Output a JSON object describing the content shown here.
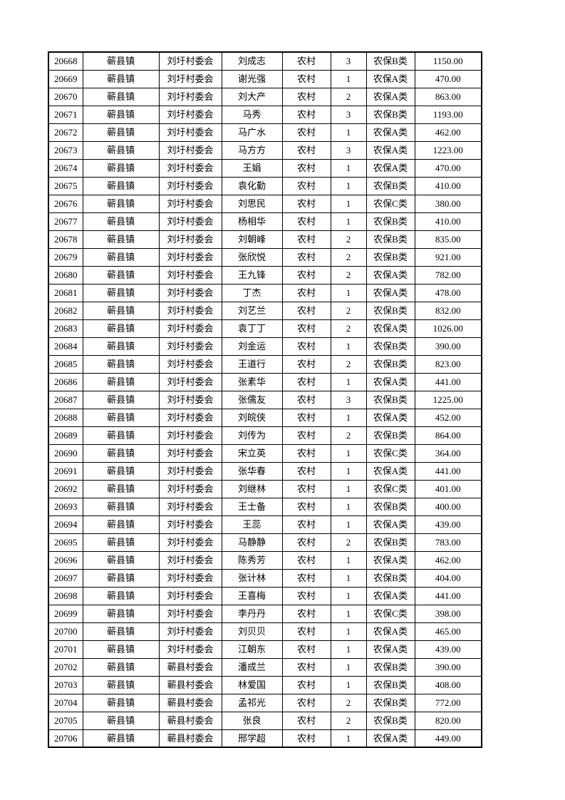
{
  "page": {
    "background_color": "#ffffff",
    "border_color": "#000000",
    "text_color": "#000000"
  },
  "table": {
    "rows": [
      [
        "20668",
        "蕲县镇",
        "刘圩村委会",
        "刘成志",
        "农村",
        "3",
        "农保B类",
        "1150.00"
      ],
      [
        "20669",
        "蕲县镇",
        "刘圩村委会",
        "谢光强",
        "农村",
        "1",
        "农保A类",
        "470.00"
      ],
      [
        "20670",
        "蕲县镇",
        "刘圩村委会",
        "刘大产",
        "农村",
        "2",
        "农保A类",
        "863.00"
      ],
      [
        "20671",
        "蕲县镇",
        "刘圩村委会",
        "马秀",
        "农村",
        "3",
        "农保B类",
        "1193.00"
      ],
      [
        "20672",
        "蕲县镇",
        "刘圩村委会",
        "马广水",
        "农村",
        "1",
        "农保A类",
        "462.00"
      ],
      [
        "20673",
        "蕲县镇",
        "刘圩村委会",
        "马方方",
        "农村",
        "3",
        "农保A类",
        "1223.00"
      ],
      [
        "20674",
        "蕲县镇",
        "刘圩村委会",
        "王娟",
        "农村",
        "1",
        "农保A类",
        "470.00"
      ],
      [
        "20675",
        "蕲县镇",
        "刘圩村委会",
        "袁化勤",
        "农村",
        "1",
        "农保B类",
        "410.00"
      ],
      [
        "20676",
        "蕲县镇",
        "刘圩村委会",
        "刘思民",
        "农村",
        "1",
        "农保C类",
        "380.00"
      ],
      [
        "20677",
        "蕲县镇",
        "刘圩村委会",
        "杨相华",
        "农村",
        "1",
        "农保B类",
        "410.00"
      ],
      [
        "20678",
        "蕲县镇",
        "刘圩村委会",
        "刘朝峰",
        "农村",
        "2",
        "农保B类",
        "835.00"
      ],
      [
        "20679",
        "蕲县镇",
        "刘圩村委会",
        "张欣悦",
        "农村",
        "2",
        "农保B类",
        "921.00"
      ],
      [
        "20680",
        "蕲县镇",
        "刘圩村委会",
        "王九锋",
        "农村",
        "2",
        "农保A类",
        "782.00"
      ],
      [
        "20681",
        "蕲县镇",
        "刘圩村委会",
        "丁杰",
        "农村",
        "1",
        "农保A类",
        "478.00"
      ],
      [
        "20682",
        "蕲县镇",
        "刘圩村委会",
        "刘艺兰",
        "农村",
        "2",
        "农保B类",
        "832.00"
      ],
      [
        "20683",
        "蕲县镇",
        "刘圩村委会",
        "袁丁丁",
        "农村",
        "2",
        "农保A类",
        "1026.00"
      ],
      [
        "20684",
        "蕲县镇",
        "刘圩村委会",
        "刘金运",
        "农村",
        "1",
        "农保B类",
        "390.00"
      ],
      [
        "20685",
        "蕲县镇",
        "刘圩村委会",
        "王道行",
        "农村",
        "2",
        "农保B类",
        "823.00"
      ],
      [
        "20686",
        "蕲县镇",
        "刘圩村委会",
        "张素华",
        "农村",
        "1",
        "农保A类",
        "441.00"
      ],
      [
        "20687",
        "蕲县镇",
        "刘圩村委会",
        "张儒友",
        "农村",
        "3",
        "农保B类",
        "1225.00"
      ],
      [
        "20688",
        "蕲县镇",
        "刘圩村委会",
        "刘皖侠",
        "农村",
        "1",
        "农保A类",
        "452.00"
      ],
      [
        "20689",
        "蕲县镇",
        "刘圩村委会",
        "刘传为",
        "农村",
        "2",
        "农保B类",
        "864.00"
      ],
      [
        "20690",
        "蕲县镇",
        "刘圩村委会",
        "宋立英",
        "农村",
        "1",
        "农保C类",
        "364.00"
      ],
      [
        "20691",
        "蕲县镇",
        "刘圩村委会",
        "张华春",
        "农村",
        "1",
        "农保A类",
        "441.00"
      ],
      [
        "20692",
        "蕲县镇",
        "刘圩村委会",
        "刘继林",
        "农村",
        "1",
        "农保C类",
        "401.00"
      ],
      [
        "20693",
        "蕲县镇",
        "刘圩村委会",
        "王士备",
        "农村",
        "1",
        "农保B类",
        "400.00"
      ],
      [
        "20694",
        "蕲县镇",
        "刘圩村委会",
        "王蕊",
        "农村",
        "1",
        "农保A类",
        "439.00"
      ],
      [
        "20695",
        "蕲县镇",
        "刘圩村委会",
        "马静静",
        "农村",
        "2",
        "农保B类",
        "783.00"
      ],
      [
        "20696",
        "蕲县镇",
        "刘圩村委会",
        "陈秀芳",
        "农村",
        "1",
        "农保A类",
        "462.00"
      ],
      [
        "20697",
        "蕲县镇",
        "刘圩村委会",
        "张计林",
        "农村",
        "1",
        "农保B类",
        "404.00"
      ],
      [
        "20698",
        "蕲县镇",
        "刘圩村委会",
        "王喜梅",
        "农村",
        "1",
        "农保A类",
        "441.00"
      ],
      [
        "20699",
        "蕲县镇",
        "刘圩村委会",
        "李丹丹",
        "农村",
        "1",
        "农保C类",
        "398.00"
      ],
      [
        "20700",
        "蕲县镇",
        "刘圩村委会",
        "刘贝贝",
        "农村",
        "1",
        "农保A类",
        "465.00"
      ],
      [
        "20701",
        "蕲县镇",
        "刘圩村委会",
        "江朝东",
        "农村",
        "1",
        "农保A类",
        "439.00"
      ],
      [
        "20702",
        "蕲县镇",
        "蕲县村委会",
        "潘成兰",
        "农村",
        "1",
        "农保B类",
        "390.00"
      ],
      [
        "20703",
        "蕲县镇",
        "蕲县村委会",
        "林爱国",
        "农村",
        "1",
        "农保B类",
        "408.00"
      ],
      [
        "20704",
        "蕲县镇",
        "蕲县村委会",
        "孟祁光",
        "农村",
        "2",
        "农保B类",
        "772.00"
      ],
      [
        "20705",
        "蕲县镇",
        "蕲县村委会",
        "张良",
        "农村",
        "2",
        "农保B类",
        "820.00"
      ],
      [
        "20706",
        "蕲县镇",
        "蕲县村委会",
        "邢学超",
        "农村",
        "1",
        "农保A类",
        "449.00"
      ]
    ]
  }
}
